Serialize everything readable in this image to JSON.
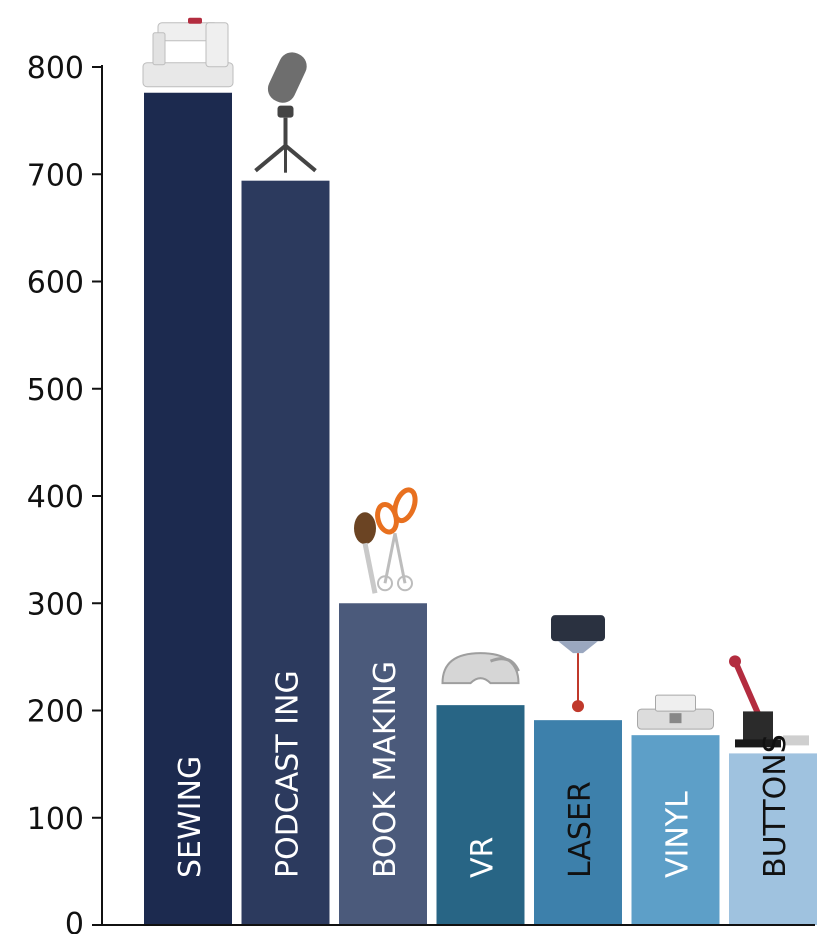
{
  "chart_data": {
    "type": "bar",
    "title": "",
    "xlabel": "",
    "ylabel": "",
    "ylim": [
      0,
      800
    ],
    "yticks": [
      0,
      100,
      200,
      300,
      400,
      500,
      600,
      700,
      800
    ],
    "grid": false,
    "legend": "none",
    "categories": [
      "SEWING",
      "PODCAST ING",
      "BOOK MAKING",
      "VR",
      "LASER",
      "VINYL",
      "BUTTONS"
    ],
    "values": [
      776,
      694,
      300,
      205,
      191,
      177,
      160
    ],
    "colors": [
      "#1c2a4f",
      "#2c3a5e",
      "#4b5a7b",
      "#286585",
      "#3d80ab",
      "#5d9fc8",
      "#9fc2df"
    ],
    "label_colors": [
      "#ffffff",
      "#ffffff",
      "#ffffff",
      "#ffffff",
      "#111111",
      "#ffffff",
      "#111111"
    ],
    "icons": [
      "sewing-machine-icon",
      "podcast-microphone-icon",
      "bookbinding-tools-icon",
      "vr-headset-icon",
      "laser-cutter-icon",
      "vinyl-cutter-icon",
      "button-press-icon"
    ]
  }
}
